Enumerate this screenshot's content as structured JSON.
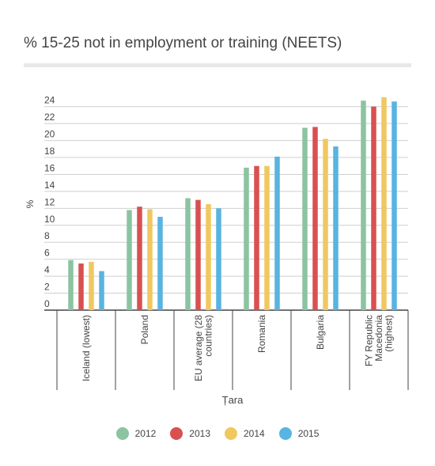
{
  "chart_data": {
    "type": "bar",
    "title": "% 15-25 not in employment or training (NEETS)",
    "xlabel": "Țara",
    "ylabel": "%",
    "ylim": [
      0,
      25
    ],
    "yticks": [
      0,
      2,
      4,
      6,
      8,
      10,
      12,
      14,
      16,
      18,
      20,
      22,
      24
    ],
    "grid": true,
    "legend_position": "bottom",
    "categories": [
      "Iceland (lowest)",
      "Poland",
      "EU average (28 countries)",
      "Romania",
      "Bulgaria",
      "FY Republic Macedonia (highest)"
    ],
    "category_lines": [
      [
        "Iceland (lowest)"
      ],
      [
        "Poland"
      ],
      [
        "EU average (28",
        "countries)"
      ],
      [
        "Romania"
      ],
      [
        "Bulgaria"
      ],
      [
        "FY Republic",
        "Macedonia",
        "(highest)"
      ]
    ],
    "series": [
      {
        "name": "2012",
        "color": "#8bc4a0",
        "values": [
          5.9,
          11.8,
          13.2,
          16.8,
          21.5,
          24.7
        ]
      },
      {
        "name": "2013",
        "color": "#d95050",
        "values": [
          5.5,
          12.2,
          13.0,
          17.0,
          21.6,
          24.0
        ]
      },
      {
        "name": "2014",
        "color": "#f0c860",
        "values": [
          5.7,
          11.9,
          12.5,
          17.0,
          20.2,
          25.1
        ]
      },
      {
        "name": "2015",
        "color": "#58b4e0",
        "values": [
          4.6,
          11.0,
          12.0,
          18.1,
          19.3,
          24.6
        ]
      }
    ]
  }
}
